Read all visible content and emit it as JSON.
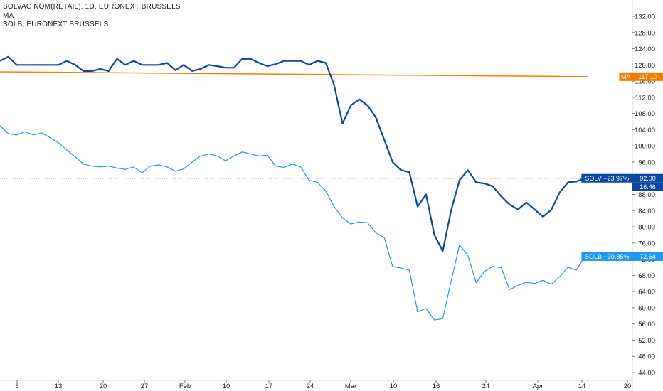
{
  "legend": {
    "line1": "SOLVAC NOM(RETAIL), 1D, EURONEXT BRUSSELS",
    "line2": "MA",
    "line3": "SOLB, EURONEXT BRUSSELS"
  },
  "colors": {
    "solv": "#0d47a1",
    "solb": "#2196f3",
    "ma": "#f57c00",
    "axis": "#787b86",
    "text": "#131722"
  },
  "chart_data": {
    "type": "line",
    "title": "SOLVAC NOM(RETAIL), 1D, EURONEXT BRUSSELS",
    "ylim": [
      43,
      134
    ],
    "y_ticks": [
      "132.00",
      "128.00",
      "124.00",
      "120.00",
      "116.00",
      "112.00",
      "108.00",
      "104.00",
      "100.00",
      "96.00",
      "92.00",
      "88.00",
      "84.00",
      "80.00",
      "76.00",
      "72.00",
      "68.00",
      "64.00",
      "60.00",
      "56.00",
      "52.00",
      "48.00",
      "44.00"
    ],
    "x_ticks": [
      "6",
      "13",
      "20",
      "27",
      "Feb",
      "10",
      "17",
      "24",
      "Mar",
      "10",
      "16",
      "24",
      "Apr",
      "14",
      "20"
    ],
    "series": [
      {
        "name": "SOLV",
        "label": "SOLV −23.97%",
        "last_value": "92.00",
        "countdown": "16:46",
        "values": [
          121.0,
          122.0,
          120.0,
          120.0,
          120.0,
          120.0,
          120.0,
          120.0,
          121.0,
          120.0,
          118.5,
          118.5,
          119.0,
          118.5,
          121.5,
          120.0,
          121.0,
          120.0,
          120.0,
          120.0,
          120.5,
          118.7,
          120.0,
          118.5,
          119.0,
          120.0,
          119.7,
          119.3,
          119.3,
          121.5,
          121.5,
          120.5,
          119.7,
          120.2,
          121.0,
          121.0,
          121.0,
          120.0,
          121.0,
          120.5,
          115.0,
          105.5,
          110.0,
          111.5,
          110.0,
          107.0,
          101.5,
          96.0,
          94.0,
          93.5,
          85.0,
          88.0,
          78.0,
          74.0,
          84.0,
          91.5,
          94.0,
          91.0,
          90.7,
          90.0,
          87.5,
          85.5,
          84.3,
          86.0,
          84.3,
          82.5,
          84.2,
          88.5,
          91.0,
          91.2,
          92.0
        ]
      },
      {
        "name": "SOLB",
        "label": "SOLB −30.85%",
        "last_value": "72.64",
        "values": [
          105.0,
          103.0,
          102.7,
          103.5,
          102.7,
          103.2,
          102.0,
          100.8,
          99.0,
          97.3,
          95.5,
          95.0,
          94.8,
          95.0,
          94.5,
          94.2,
          94.8,
          93.3,
          95.0,
          95.3,
          94.8,
          93.7,
          94.3,
          96.0,
          97.5,
          98.0,
          97.5,
          96.3,
          97.5,
          98.5,
          98.0,
          97.5,
          97.7,
          95.0,
          94.7,
          95.5,
          94.8,
          91.5,
          91.0,
          88.8,
          85.0,
          82.2,
          80.7,
          81.2,
          81.0,
          78.5,
          77.3,
          70.2,
          69.8,
          69.3,
          59.0,
          59.8,
          57.0,
          57.3,
          66.5,
          75.5,
          73.0,
          66.2,
          69.0,
          70.2,
          69.9,
          64.5,
          65.5,
          66.3,
          66.0,
          66.8,
          65.8,
          67.7,
          70.0,
          69.3,
          72.64
        ]
      },
      {
        "name": "MA",
        "label": "MA",
        "last_value": "117.10",
        "values": [
          118.3,
          117.1
        ]
      }
    ]
  }
}
